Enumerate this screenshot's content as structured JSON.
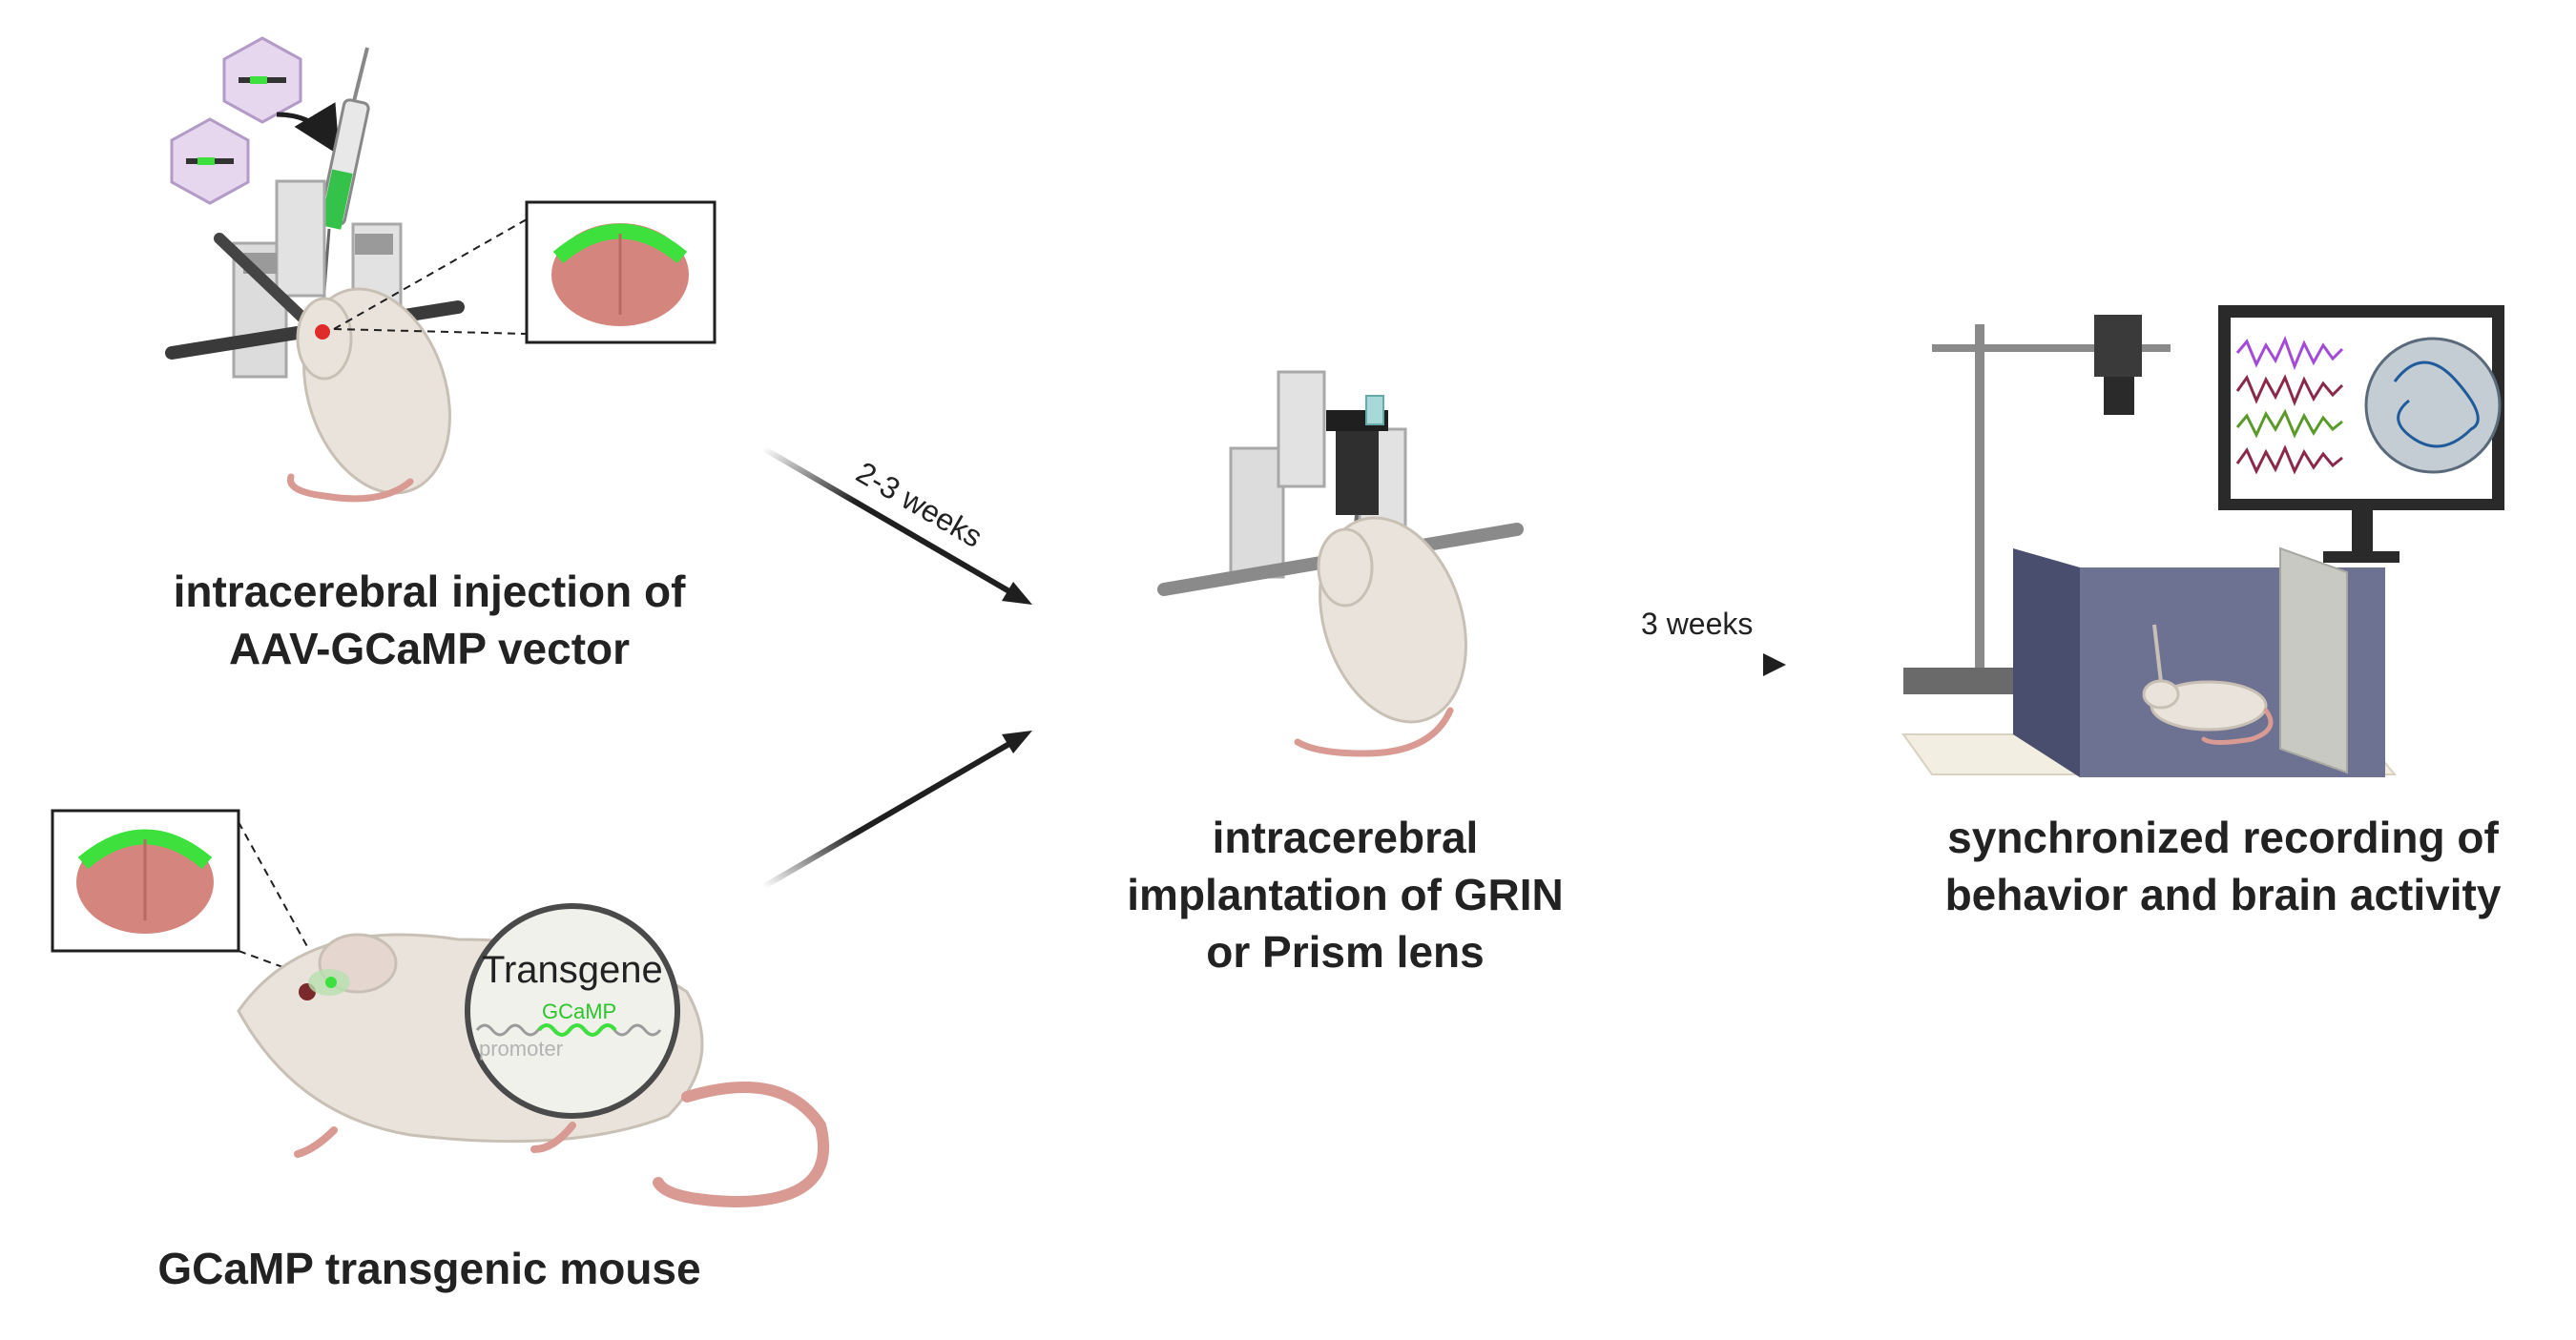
{
  "steps": {
    "injection": {
      "line1": "intracerebral injection of",
      "line2": "AAV-GCaMP vector"
    },
    "transgenic": {
      "label": "GCaMP transgenic mouse"
    },
    "implantation": {
      "line1": "intracerebral",
      "line2": "implantation of GRIN",
      "line3": "or Prism lens"
    },
    "recording": {
      "line1": "synchronized recording of",
      "line2": "behavior and brain activity"
    }
  },
  "arrows": {
    "delay1": "2-3 weeks",
    "delay2": "3 weeks"
  },
  "transgene_inset": {
    "title": "Transgene",
    "gene": "GCaMP",
    "promoter": "promoter"
  },
  "colors": {
    "gcamp_green": "#3ee03e",
    "brain_pink": "#d4857e",
    "mouse_body": "#e9e3dc",
    "tail_pink": "#d99a93",
    "arena_wall": "#6d7192",
    "monitor": "#2a2a2a",
    "arrow": "#1f1f1f"
  }
}
